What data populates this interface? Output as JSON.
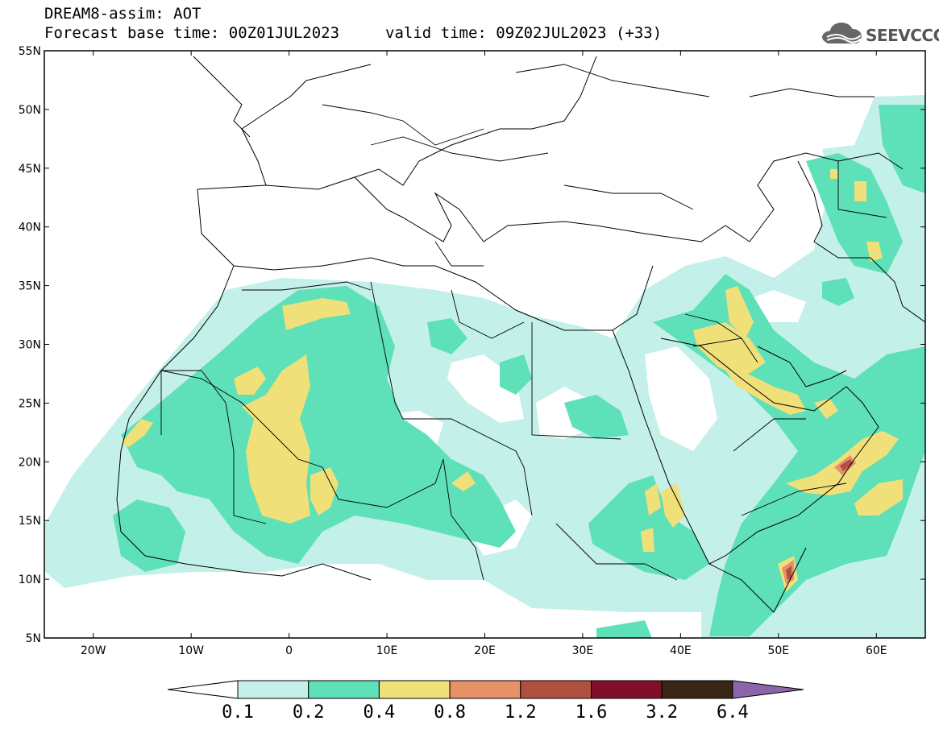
{
  "header": {
    "title": "DREAM8-assim: AOT",
    "base_time": "Forecast base time: 00Z01JUL2023",
    "valid_time": "valid time: 09Z02JUL2023 (+33)",
    "logo_text": "SEEVCCC",
    "logo_icon": "cloud-icon"
  },
  "map": {
    "lon_range": [
      -25,
      65
    ],
    "lat_range": [
      5,
      55
    ],
    "lat_ticks": [
      {
        "value": 55,
        "label": "55N"
      },
      {
        "value": 50,
        "label": "50N"
      },
      {
        "value": 45,
        "label": "45N"
      },
      {
        "value": 40,
        "label": "40N"
      },
      {
        "value": 35,
        "label": "35N"
      },
      {
        "value": 30,
        "label": "30N"
      },
      {
        "value": 25,
        "label": "25N"
      },
      {
        "value": 20,
        "label": "20N"
      },
      {
        "value": 15,
        "label": "15N"
      },
      {
        "value": 10,
        "label": "10N"
      },
      {
        "value": 5,
        "label": "5N"
      }
    ],
    "lon_ticks": [
      {
        "value": -20,
        "label": "20W"
      },
      {
        "value": -10,
        "label": "10W"
      },
      {
        "value": 0,
        "label": "0"
      },
      {
        "value": 10,
        "label": "10E"
      },
      {
        "value": 20,
        "label": "20E"
      },
      {
        "value": 30,
        "label": "30E"
      },
      {
        "value": 40,
        "label": "40E"
      },
      {
        "value": 50,
        "label": "50E"
      },
      {
        "value": 60,
        "label": "60E"
      }
    ]
  },
  "colorbar": {
    "labels": [
      "0.1",
      "0.2",
      "0.4",
      "0.8",
      "1.2",
      "1.6",
      "3.2",
      "6.4"
    ],
    "colors": [
      "#c4f0ea",
      "#5ee0b8",
      "#f0e07a",
      "#e89068",
      "#b05040",
      "#80102a",
      "#3a2614"
    ],
    "below_color": "#ffffff",
    "above_color": "#8c64a8"
  }
}
